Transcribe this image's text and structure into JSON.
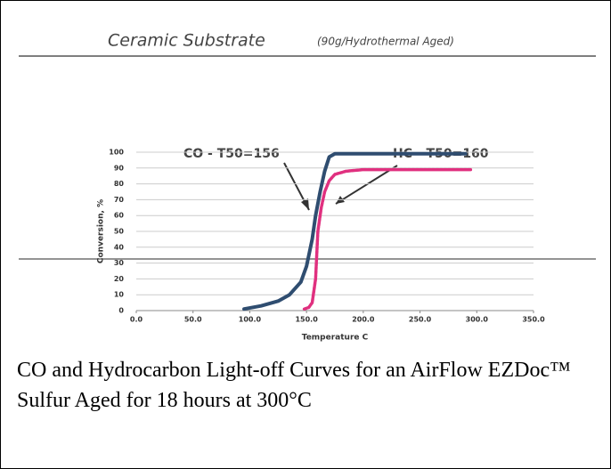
{
  "chart_data": {
    "type": "line",
    "title": "Ceramic Substrate",
    "subtitle": "(90g/Hydrothermal Aged)",
    "x_label": "Temperature C",
    "y_label": "Conversion, %",
    "annotations": [
      "CO - T50=156",
      "HC - T50=160"
    ],
    "series": [
      {
        "name": "CO",
        "color": "#2f4d70",
        "x": [
          95,
          110,
          125,
          135,
          145,
          150,
          155,
          158,
          162,
          166,
          170,
          175,
          200,
          250,
          290
        ],
        "values": [
          1,
          3,
          6,
          10,
          18,
          28,
          45,
          60,
          75,
          88,
          97,
          99,
          99,
          99,
          99
        ]
      },
      {
        "name": "HC",
        "color": "#e0307f",
        "x": [
          148,
          152,
          155,
          158,
          160,
          163,
          166,
          170,
          175,
          185,
          200,
          250,
          295
        ],
        "values": [
          1,
          2,
          5,
          20,
          50,
          65,
          75,
          82,
          86,
          88,
          89,
          89,
          89
        ]
      }
    ],
    "xlim": [
      0,
      350
    ],
    "ylim": [
      0,
      100
    ],
    "xticks": [
      {
        "value": 0,
        "label": "0.0"
      },
      {
        "value": 50,
        "label": "50.0"
      },
      {
        "value": 100,
        "label": "100.0"
      },
      {
        "value": 150,
        "label": "150.0"
      },
      {
        "value": 200,
        "label": "200.0"
      },
      {
        "value": 250,
        "label": "250.0"
      },
      {
        "value": 300,
        "label": "300.0"
      },
      {
        "value": 350,
        "label": "350.0"
      }
    ],
    "yticks": [
      0,
      10,
      20,
      30,
      40,
      50,
      60,
      70,
      80,
      90,
      100
    ],
    "grid": true
  },
  "caption": "CO and Hydrocarbon Light-off Curves for an AirFlow EZDoc™ Sulfur Aged for 18 hours at 300°C"
}
